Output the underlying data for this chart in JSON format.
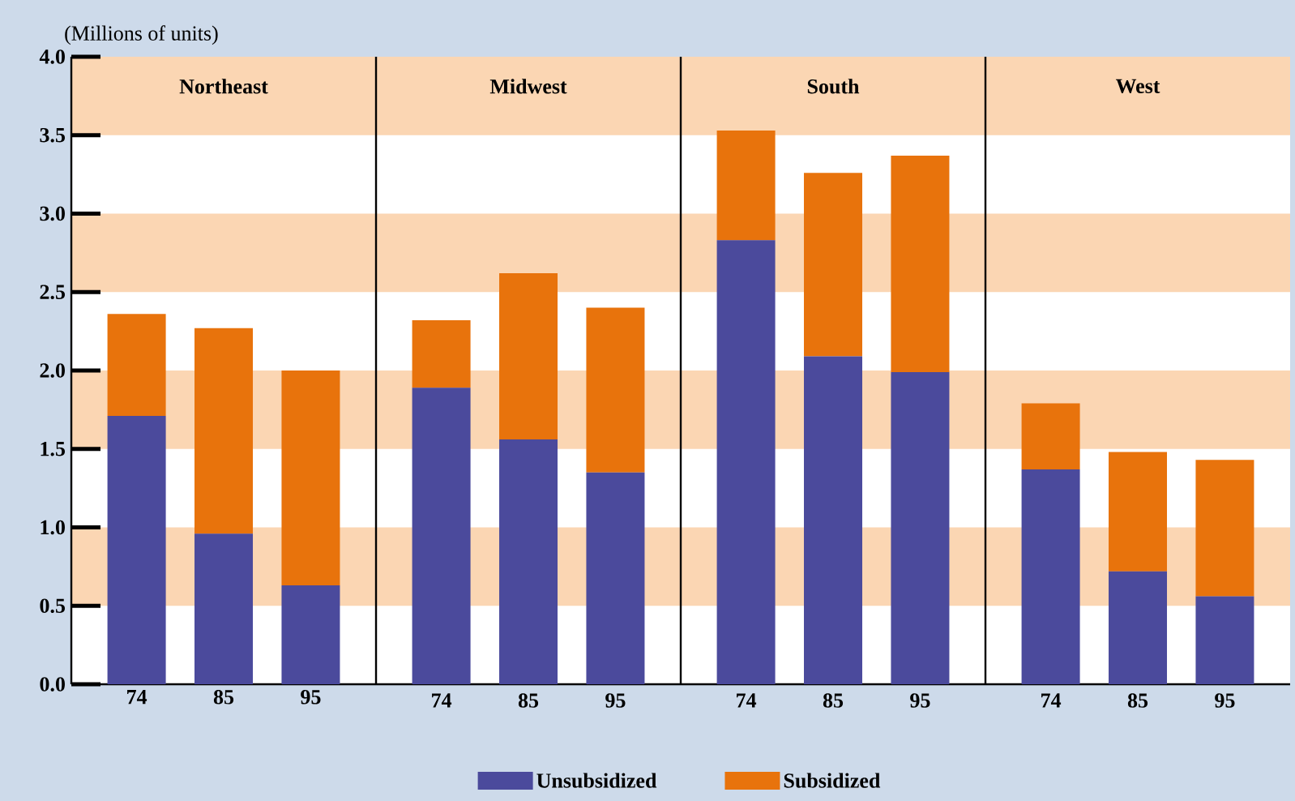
{
  "chart_data": [
    {
      "type": "bar",
      "stacked": true,
      "title": "Northeast",
      "ylabel": "(Millions of units)",
      "categories": [
        "74",
        "85",
        "95"
      ],
      "series": [
        {
          "name": "Unsubsidized",
          "color": "#4b4a9c",
          "values": [
            1.71,
            0.96,
            0.63
          ]
        },
        {
          "name": "Subsidized",
          "color": "#e8730c",
          "values": [
            0.65,
            1.31,
            1.37
          ]
        }
      ],
      "ylim": [
        0,
        4
      ],
      "yticks": [
        {
          "value": 0,
          "label": "0.0"
        },
        {
          "value": 0.5,
          "label": "0.5"
        },
        {
          "value": 1,
          "label": "1.0"
        },
        {
          "value": 1.5,
          "label": "1.5"
        },
        {
          "value": 2,
          "label": "2.0"
        },
        {
          "value": 2.5,
          "label": "2.5"
        },
        {
          "value": 3,
          "label": "3.0"
        },
        {
          "value": 3.5,
          "label": "3.5"
        },
        {
          "value": 4,
          "label": "4.0"
        }
      ],
      "bands": [
        {
          "axis": "y",
          "from": 0.5,
          "to": 1,
          "color": "#fbd6b3"
        },
        {
          "axis": "y",
          "from": 1.5,
          "to": 2,
          "color": "#fbd6b3"
        },
        {
          "axis": "y",
          "from": 2.5,
          "to": 3,
          "color": "#fbd6b3"
        },
        {
          "axis": "y",
          "from": 3.5,
          "to": 4,
          "color": "#fbd6b3"
        }
      ],
      "legend": "bottom"
    },
    {
      "type": "bar",
      "stacked": true,
      "title": "Midwest",
      "categories": [
        "74",
        "85",
        "95"
      ],
      "series": [
        {
          "color": "#4b4a9c",
          "values": [
            1.89,
            1.56,
            1.35
          ]
        },
        {
          "color": "#e8730c",
          "values": [
            0.43,
            1.06,
            1.05
          ]
        }
      ],
      "ylim": [
        0,
        4
      ],
      "tick_labels": "x",
      "bands": [
        {
          "axis": "y",
          "from": 0.5,
          "to": 1,
          "color": "#fbd6b3"
        },
        {
          "axis": "y",
          "from": 1.5,
          "to": 2,
          "color": "#fbd6b3"
        },
        {
          "axis": "y",
          "from": 2.5,
          "to": 3,
          "color": "#fbd6b3"
        },
        {
          "axis": "y",
          "from": 3.5,
          "to": 4,
          "color": "#fbd6b3"
        }
      ]
    },
    {
      "type": "bar",
      "stacked": true,
      "title": "South",
      "categories": [
        "74",
        "85",
        "95"
      ],
      "series": [
        {
          "color": "#4b4a9c",
          "values": [
            2.83,
            2.09,
            1.99
          ]
        },
        {
          "color": "#e8730c",
          "values": [
            0.7,
            1.17,
            1.38
          ]
        }
      ],
      "ylim": [
        0,
        4
      ],
      "tick_labels": "x",
      "bands": [
        {
          "axis": "y",
          "from": 0.5,
          "to": 1,
          "color": "#fbd6b3"
        },
        {
          "axis": "y",
          "from": 1.5,
          "to": 2,
          "color": "#fbd6b3"
        },
        {
          "axis": "y",
          "from": 2.5,
          "to": 3,
          "color": "#fbd6b3"
        },
        {
          "axis": "y",
          "from": 3.5,
          "to": 4,
          "color": "#fbd6b3"
        }
      ]
    },
    {
      "type": "bar",
      "stacked": true,
      "title": "West",
      "categories": [
        "74",
        "85",
        "95"
      ],
      "series": [
        {
          "color": "#4b4a9c",
          "values": [
            1.37,
            0.72,
            0.56
          ]
        },
        {
          "color": "#e8730c",
          "values": [
            0.42,
            0.76,
            0.87
          ]
        }
      ],
      "ylim": [
        0,
        4
      ],
      "tick_labels": "x",
      "bands": [
        {
          "axis": "y",
          "from": 0.5,
          "to": 1,
          "color": "#fbd6b3"
        },
        {
          "axis": "y",
          "from": 1.5,
          "to": 2,
          "color": "#fbd6b3"
        },
        {
          "axis": "y",
          "from": 2.5,
          "to": 3,
          "color": "#fbd6b3"
        },
        {
          "axis": "y",
          "from": 3.5,
          "to": 4,
          "color": "#fbd6b3"
        }
      ]
    }
  ]
}
